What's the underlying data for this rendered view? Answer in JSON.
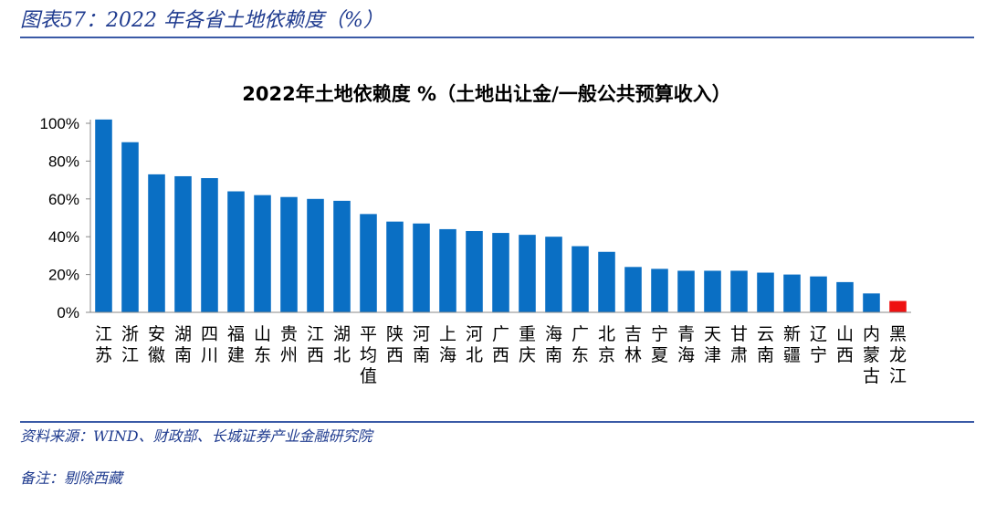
{
  "caption": "图表57：2022 年各省土地依赖度（%）",
  "source": "资料来源：WIND、财政部、长城证券产业金融研究院",
  "note": "备注：剔除西藏",
  "colors": {
    "bar": "#0a6fc4",
    "highlight": "#ee1111",
    "rule": "#3a5aa6",
    "caption": "#1f3b8f"
  },
  "chart_data": {
    "type": "bar",
    "title": "2022年土地依赖度 %（土地出让金/一般公共预算收入）",
    "xlabel": "",
    "ylabel": "",
    "ylim": [
      0,
      100
    ],
    "yticks": [
      "0%",
      "20%",
      "40%",
      "60%",
      "80%",
      "100%"
    ],
    "categories": [
      "江苏",
      "浙江",
      "安徽",
      "湖南",
      "四川",
      "福建",
      "山东",
      "贵州",
      "江西",
      "湖北",
      "平均值",
      "陕西",
      "河南",
      "上海",
      "河北",
      "广西",
      "重庆",
      "海南",
      "广东",
      "北京",
      "吉林",
      "宁夏",
      "青海",
      "天津",
      "甘肃",
      "云南",
      "新疆",
      "辽宁",
      "山西",
      "内蒙古",
      "黑龙江"
    ],
    "values": [
      102,
      90,
      73,
      72,
      71,
      64,
      62,
      61,
      60,
      59,
      52,
      48,
      47,
      44,
      43,
      42,
      41,
      40,
      35,
      32,
      24,
      23,
      22,
      22,
      22,
      21,
      20,
      19,
      16,
      10,
      6
    ],
    "highlight_category": "黑龙江",
    "grid": false,
    "legend": "none"
  }
}
